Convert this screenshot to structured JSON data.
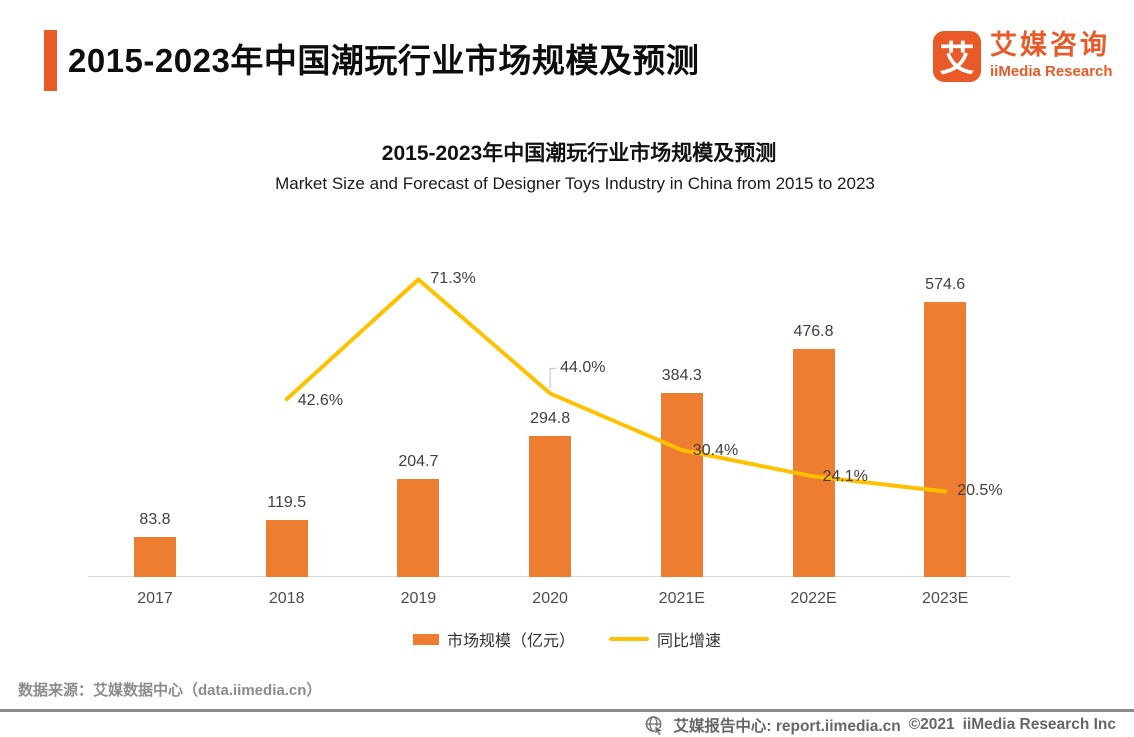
{
  "header": {
    "title": "2015-2023年中国潮玩行业市场规模及预测",
    "logo": {
      "icon_char": "艾",
      "brand_cn": "艾媒咨询",
      "brand_en": "iiMedia Research"
    }
  },
  "chart_data": {
    "type": "bar",
    "combo": "bar+line",
    "title": "2015-2023年中国潮玩行业市场规模及预测",
    "subtitle": "Market Size and Forecast of Designer Toys Industry in China from 2015 to 2023",
    "categories": [
      "2017",
      "2018",
      "2019",
      "2020",
      "2021E",
      "2022E",
      "2023E"
    ],
    "series": [
      {
        "name": "市场规模（亿元）",
        "type": "bar",
        "unit": "亿元",
        "color": "#ED7D31",
        "values": [
          83.8,
          119.5,
          204.7,
          294.8,
          384.3,
          476.8,
          574.6
        ]
      },
      {
        "name": "同比增速",
        "type": "line",
        "unit": "%",
        "color": "#FFC000",
        "values": [
          null,
          42.6,
          71.3,
          44.0,
          30.4,
          24.1,
          20.5
        ]
      }
    ],
    "legend_position": "bottom",
    "grid": false,
    "y_axis_visible": false,
    "x_baseline_only": true
  },
  "source": {
    "label": "数据来源：艾媒数据中心（data.iimedia.cn）"
  },
  "footer": {
    "report_center": "艾媒报告中心:  report.iimedia.cn",
    "copyright": "©2021",
    "company": "iiMedia Research  Inc"
  },
  "colors": {
    "brand_orange": "#E95A28",
    "bar_orange": "#ED7D31",
    "line_yellow": "#FFC000",
    "axis_gray": "#D9D9D9"
  }
}
